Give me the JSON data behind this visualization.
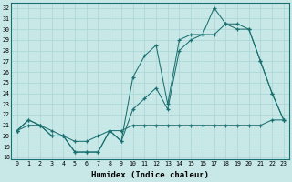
{
  "xlabel": "Humidex (Indice chaleur)",
  "bg_color": "#c8e8e8",
  "line_color": "#1a7070",
  "xlim": [
    -0.5,
    23.5
  ],
  "ylim": [
    17.8,
    32.5
  ],
  "yticks": [
    18,
    19,
    20,
    21,
    22,
    23,
    24,
    25,
    26,
    27,
    28,
    29,
    30,
    31,
    32
  ],
  "xticks": [
    0,
    1,
    2,
    3,
    4,
    5,
    6,
    7,
    8,
    9,
    10,
    11,
    12,
    13,
    14,
    15,
    16,
    17,
    18,
    19,
    20,
    21,
    22,
    23
  ],
  "series1_x": [
    0,
    1,
    2,
    3,
    4,
    5,
    6,
    7,
    8,
    9,
    10,
    11,
    12,
    13,
    14,
    15,
    16,
    17,
    18,
    19,
    20,
    21,
    22,
    23
  ],
  "series1_y": [
    20.5,
    21.5,
    21.0,
    20.0,
    20.0,
    18.5,
    18.5,
    18.5,
    20.5,
    19.5,
    25.5,
    27.5,
    28.5,
    23.0,
    29.0,
    29.5,
    29.5,
    32.0,
    30.5,
    30.5,
    30.0,
    27.0,
    24.0,
    21.5
  ],
  "series2_x": [
    0,
    1,
    2,
    3,
    4,
    5,
    6,
    7,
    8,
    9,
    10,
    11,
    12,
    13,
    14,
    15,
    16,
    17,
    18,
    19,
    20,
    21,
    22,
    23
  ],
  "series2_y": [
    20.5,
    21.5,
    21.0,
    20.0,
    20.0,
    18.5,
    18.5,
    18.5,
    20.5,
    19.5,
    22.5,
    23.5,
    24.5,
    22.5,
    28.0,
    29.0,
    29.5,
    29.5,
    30.5,
    30.0,
    30.0,
    27.0,
    24.0,
    21.5
  ],
  "series3_x": [
    0,
    1,
    2,
    3,
    4,
    5,
    6,
    7,
    8,
    9,
    10,
    11,
    12,
    13,
    14,
    15,
    16,
    17,
    18,
    19,
    20,
    21,
    22,
    23
  ],
  "series3_y": [
    20.5,
    21.0,
    21.0,
    20.5,
    20.0,
    19.5,
    19.5,
    20.0,
    20.5,
    20.5,
    21.0,
    21.0,
    21.0,
    21.0,
    21.0,
    21.0,
    21.0,
    21.0,
    21.0,
    21.0,
    21.0,
    21.0,
    21.5,
    21.5
  ]
}
